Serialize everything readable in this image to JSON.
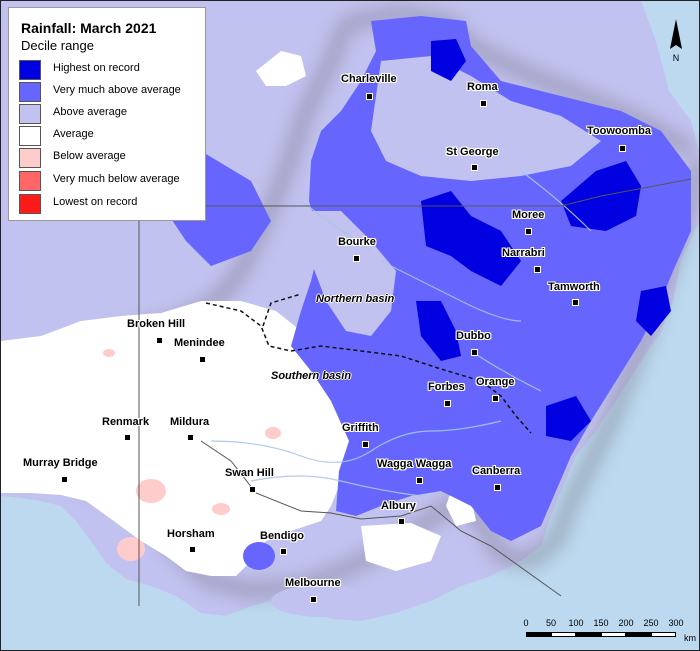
{
  "map_title": "Rainfall: March 2021",
  "legend": {
    "subtitle": "Decile range",
    "items": [
      {
        "label": "Highest on record",
        "color": "#0000e0"
      },
      {
        "label": "Very much above average",
        "color": "#6666ff"
      },
      {
        "label": "Above average",
        "color": "#c2c2f0"
      },
      {
        "label": "Average",
        "color": "#ffffff"
      },
      {
        "label": "Below average",
        "color": "#ffcccc"
      },
      {
        "label": "Very much below average",
        "color": "#ff6666"
      },
      {
        "label": "Lowest on record",
        "color": "#ff1a1a"
      }
    ]
  },
  "towns": [
    {
      "name": "Charleville"
    },
    {
      "name": "Roma"
    },
    {
      "name": "Toowoomba"
    },
    {
      "name": "St George"
    },
    {
      "name": "Moree"
    },
    {
      "name": "Narrabri"
    },
    {
      "name": "Bourke"
    },
    {
      "name": "Tamworth"
    },
    {
      "name": "Broken Hill"
    },
    {
      "name": "Menindee"
    },
    {
      "name": "Dubbo"
    },
    {
      "name": "Orange"
    },
    {
      "name": "Forbes"
    },
    {
      "name": "Renmark"
    },
    {
      "name": "Mildura"
    },
    {
      "name": "Griffith"
    },
    {
      "name": "Murray Bridge"
    },
    {
      "name": "Swan Hill"
    },
    {
      "name": "Wagga Wagga"
    },
    {
      "name": "Canberra"
    },
    {
      "name": "Albury"
    },
    {
      "name": "Horsham"
    },
    {
      "name": "Bendigo"
    },
    {
      "name": "Melbourne"
    }
  ],
  "basins": [
    "Northern basin",
    "Southern basin"
  ],
  "scale": {
    "ticks": [
      "0",
      "50",
      "100",
      "150",
      "200",
      "250",
      "300"
    ],
    "unit": "km"
  },
  "north_label": "N",
  "colors": {
    "sea": "#bcd9ef",
    "record_high": "#0000e0",
    "very_much_above": "#6666ff",
    "above": "#c2c2f0",
    "average": "#ffffff",
    "below": "#ffcccc"
  }
}
